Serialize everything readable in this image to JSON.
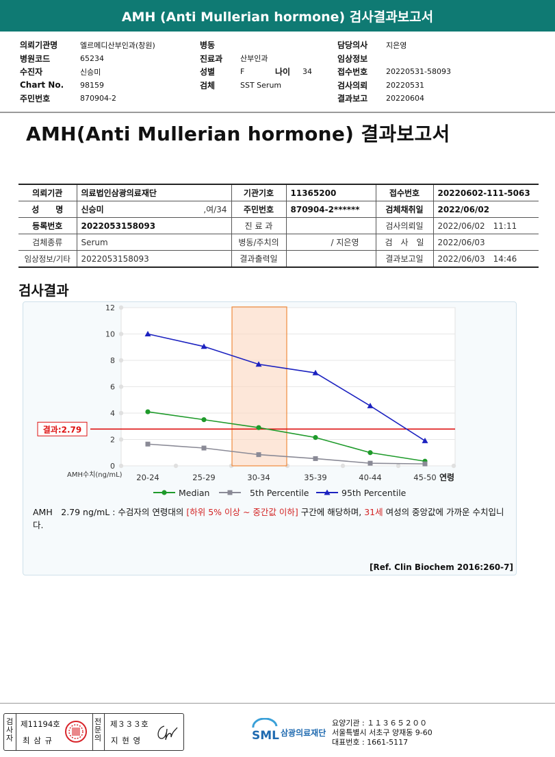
{
  "banner_title": "AMH (Anti Mullerian hormone) 검사결과보고서",
  "header": {
    "col1": [
      {
        "label": "의뢰기관명",
        "value": "엘르메디산부인과(창원)"
      },
      {
        "label": "병원코드",
        "value": "65234"
      },
      {
        "label": "수진자",
        "value": "신승미"
      },
      {
        "label": "Chart No.",
        "value": "98159"
      },
      {
        "label": "주민번호",
        "value": "870904-2"
      }
    ],
    "col2": [
      {
        "label": "병동",
        "value": ""
      },
      {
        "label": "진료과",
        "value": "산부인과"
      },
      {
        "label": "성별",
        "value": "F"
      },
      {
        "label": "검체",
        "value": "SST Serum"
      }
    ],
    "age_label": "나이",
    "age_value": "34",
    "col3": [
      {
        "label": "담당의사",
        "value": "지은영"
      },
      {
        "label": "임상정보",
        "value": ""
      },
      {
        "label": "접수번호",
        "value": "20220531-58093"
      },
      {
        "label": "검사의뢰",
        "value": "20220531"
      },
      {
        "label": "결과보고",
        "value": "20220604"
      }
    ]
  },
  "report_title": "AMH(Anti Mullerian hormone) 결과보고서",
  "info_table": {
    "r1": {
      "l1": "의뢰기관",
      "v1": "의료법인삼광의료재단",
      "l2": "기관기호",
      "v2": "11365200",
      "l3": "접수번호",
      "v3": "20220602-111-5063"
    },
    "r2": {
      "l1": "성　　명",
      "v1": "신승미",
      "v1b": ",여/34",
      "l2": "주민번호",
      "v2": "870904-2******",
      "l3": "검체채취일",
      "v3": "2022/06/02"
    },
    "r3": {
      "l1": "등록번호",
      "v1": "2022053158093",
      "l2": "진 료 과",
      "v2": "",
      "l3": "검사의뢰일",
      "v3": "2022/06/02　11:11"
    },
    "r4": {
      "l1": "검체종류",
      "v1": "Serum",
      "l2": "병동/주치의",
      "v2": "/ 지은영",
      "l3": "검　사　일",
      "v3": "2022/06/03"
    },
    "r5": {
      "l1": "임상정보/기타",
      "v1": "2022053158093",
      "l2": "결과출력일",
      "v2": "",
      "l3": "결과보고일",
      "v3": "2022/06/03　14:46"
    }
  },
  "section_title": "검사결과",
  "chart_data": {
    "type": "line",
    "categories": [
      "20-24",
      "25-29",
      "30-34",
      "35-39",
      "40-44",
      "45-50"
    ],
    "x_unit_label": "연령",
    "ylabel": "AMH수치(ng/mL)",
    "ylim": [
      0,
      12
    ],
    "yticks": [
      0,
      2,
      4,
      6,
      8,
      10,
      12
    ],
    "grid": true,
    "highlight_category": "30-34",
    "series": [
      {
        "name": "Median",
        "color": "#1e9a2a",
        "marker": "circle",
        "values": [
          4.1,
          3.5,
          2.9,
          2.15,
          1.0,
          0.35
        ]
      },
      {
        "name": "5th Percentile",
        "color": "#8a8a96",
        "marker": "square",
        "values": [
          1.65,
          1.35,
          0.85,
          0.55,
          0.2,
          0.15
        ]
      },
      {
        "name": "95th Percentile",
        "color": "#1c22c0",
        "marker": "triangle",
        "values": [
          10.0,
          9.05,
          7.7,
          7.05,
          4.55,
          1.9
        ]
      }
    ],
    "result_line": {
      "value": 2.79,
      "label": "결과:2.79",
      "color": "#dd1111"
    },
    "legend_position": "bottom"
  },
  "note": {
    "p1": "AMH　2.79 ng/mL : 수검자의 연령대의 ",
    "range": "[하위 5% 이상 ~ 중간값 이하]",
    "p2": " 구간에 해당하며, ",
    "age": "31세",
    "p3": " 여성의 중앙값에 가까운 수치입니다."
  },
  "reference": "[Ref. Clin Biochem 2016:260-7]",
  "footer": {
    "inspector_label": "검사자",
    "inspector_no": "제11194호",
    "inspector_name": "최 삼 규",
    "specialist_label": "전문의",
    "specialist_no": "제３３３호",
    "specialist_name": "지 현 영",
    "logo_text": "SML",
    "lab_name": "삼광의료재단",
    "lab_code": "요양기관 : １１３６５２００",
    "lab_address": "서울특별시 서초구 양재동 9-60",
    "lab_phone": "대표번호 : 1661-5117",
    "colors": {
      "banner": "#0f7a73",
      "logo": "#1f6ab0",
      "stamp": "#d8242a"
    }
  }
}
